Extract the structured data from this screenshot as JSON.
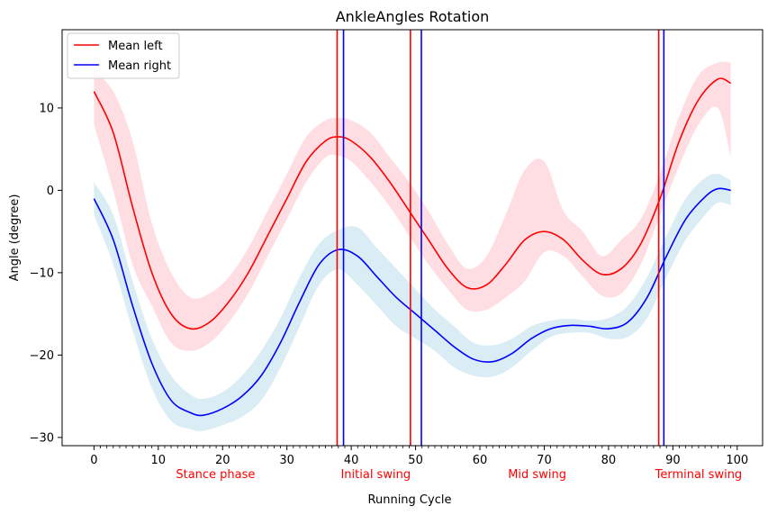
{
  "chart_data": {
    "type": "line",
    "title": "AnkleAngles Rotation",
    "xlabel": "Running Cycle",
    "ylabel": "Angle (degree)",
    "xlim": [
      -4.95,
      103.95
    ],
    "ylim": [
      -31.0,
      19.5
    ],
    "x_ticks": [
      0,
      10,
      20,
      30,
      40,
      50,
      60,
      70,
      80,
      90,
      100
    ],
    "y_ticks": [
      -30,
      -20,
      -10,
      0,
      10
    ],
    "legend": {
      "placement": "top-left",
      "entries": [
        "Mean left",
        "Mean right"
      ]
    },
    "colors": {
      "left": "#ff0000",
      "right": "#0000ff",
      "left_band": "#ffb6c1",
      "right_band": "#add8e6",
      "phase_label": "#ff0000"
    },
    "series": [
      {
        "name": "Mean left",
        "color": "#ff0000",
        "x": [
          0,
          3,
          6,
          9,
          12,
          15,
          18,
          21,
          24,
          27,
          30,
          33,
          36,
          38,
          40,
          43,
          46,
          49,
          52,
          55,
          58,
          61,
          64,
          67,
          70,
          73,
          76,
          79,
          82,
          85,
          88,
          91,
          94,
          97,
          99
        ],
        "y": [
          12,
          7,
          -2,
          -10,
          -15,
          -16.8,
          -16,
          -13.5,
          -10,
          -5.5,
          -1,
          3.5,
          6,
          6.5,
          6,
          4,
          1,
          -2.5,
          -6,
          -9.5,
          -11.8,
          -11.5,
          -9,
          -6,
          -5,
          -6,
          -8.5,
          -10.2,
          -9.5,
          -6.5,
          -1,
          6,
          11,
          13.5,
          13
        ],
        "upper": [
          14.5,
          12,
          6,
          -4,
          -10,
          -13,
          -12.5,
          -10.5,
          -7,
          -2.5,
          2,
          6.5,
          8.5,
          8.8,
          8.5,
          7,
          4,
          1,
          -2.5,
          -6.5,
          -9.5,
          -8,
          -3,
          2.5,
          3.5,
          -2.5,
          -5,
          -8,
          -6,
          -3.5,
          2,
          9,
          14,
          15.5,
          15.5
        ],
        "lower": [
          8,
          0,
          -9,
          -14,
          -18.5,
          -19.5,
          -18.5,
          -16,
          -12.5,
          -8,
          -3.5,
          1,
          4,
          4.2,
          3.5,
          1,
          -2,
          -5.5,
          -9,
          -12,
          -14.5,
          -14.5,
          -13,
          -11,
          -7.5,
          -8,
          -10.5,
          -12.8,
          -12.5,
          -9,
          -3,
          3,
          8,
          10,
          4
        ]
      },
      {
        "name": "Mean right",
        "color": "#0000ff",
        "x": [
          0,
          3,
          6,
          9,
          12,
          15,
          17,
          20,
          23,
          26,
          29,
          32,
          35,
          38,
          41,
          44,
          47,
          50,
          53,
          56,
          59,
          62,
          65,
          68,
          71,
          74,
          77,
          80,
          83,
          86,
          89,
          92,
          95,
          97,
          99
        ],
        "y": [
          -1,
          -6,
          -14,
          -21,
          -25.5,
          -27,
          -27.3,
          -26.5,
          -25,
          -22.5,
          -18.5,
          -13.5,
          -9,
          -7.2,
          -8,
          -10.5,
          -13,
          -15,
          -17,
          -19,
          -20.5,
          -20.8,
          -19.8,
          -18,
          -16.8,
          -16.4,
          -16.5,
          -16.8,
          -16,
          -13,
          -8,
          -3.5,
          -0.8,
          0.2,
          0
        ],
        "upper": [
          1,
          -3,
          -11,
          -18,
          -22.5,
          -24.8,
          -25.3,
          -24.5,
          -22.5,
          -19.5,
          -15.5,
          -10.5,
          -6.5,
          -4.8,
          -4.5,
          -7,
          -9.5,
          -12,
          -14.5,
          -16.5,
          -18.5,
          -18.8,
          -18,
          -16.5,
          -15.8,
          -15.6,
          -15.8,
          -15.5,
          -14,
          -10.5,
          -5.5,
          -1,
          1.5,
          2,
          1.2
        ],
        "lower": [
          -3,
          -9,
          -17,
          -24,
          -28,
          -29,
          -29.2,
          -28.5,
          -27.5,
          -25.5,
          -21.5,
          -16.5,
          -11.5,
          -9.6,
          -11.5,
          -14,
          -16.5,
          -18,
          -19.5,
          -21.5,
          -22.5,
          -22.6,
          -21.5,
          -19.5,
          -17.8,
          -17.3,
          -17.3,
          -18,
          -17.8,
          -15.5,
          -10.5,
          -6,
          -3,
          -1.5,
          -1.8
        ]
      }
    ],
    "vlines": [
      {
        "x": 37.8,
        "color": "#ff0000"
      },
      {
        "x": 38.8,
        "color": "#0000ff"
      },
      {
        "x": 49.2,
        "color": "#ff0000"
      },
      {
        "x": 50.9,
        "color": "#0000ff"
      },
      {
        "x": 87.8,
        "color": "#ff0000"
      },
      {
        "x": 88.6,
        "color": "#0000ff"
      }
    ],
    "phase_labels": [
      {
        "text": "Stance phase",
        "x": 18.9
      },
      {
        "text": "Initial swing",
        "x": 43.8
      },
      {
        "text": "Mid swing",
        "x": 68.9
      },
      {
        "text": "Terminal swing",
        "x": 94.0
      }
    ]
  }
}
